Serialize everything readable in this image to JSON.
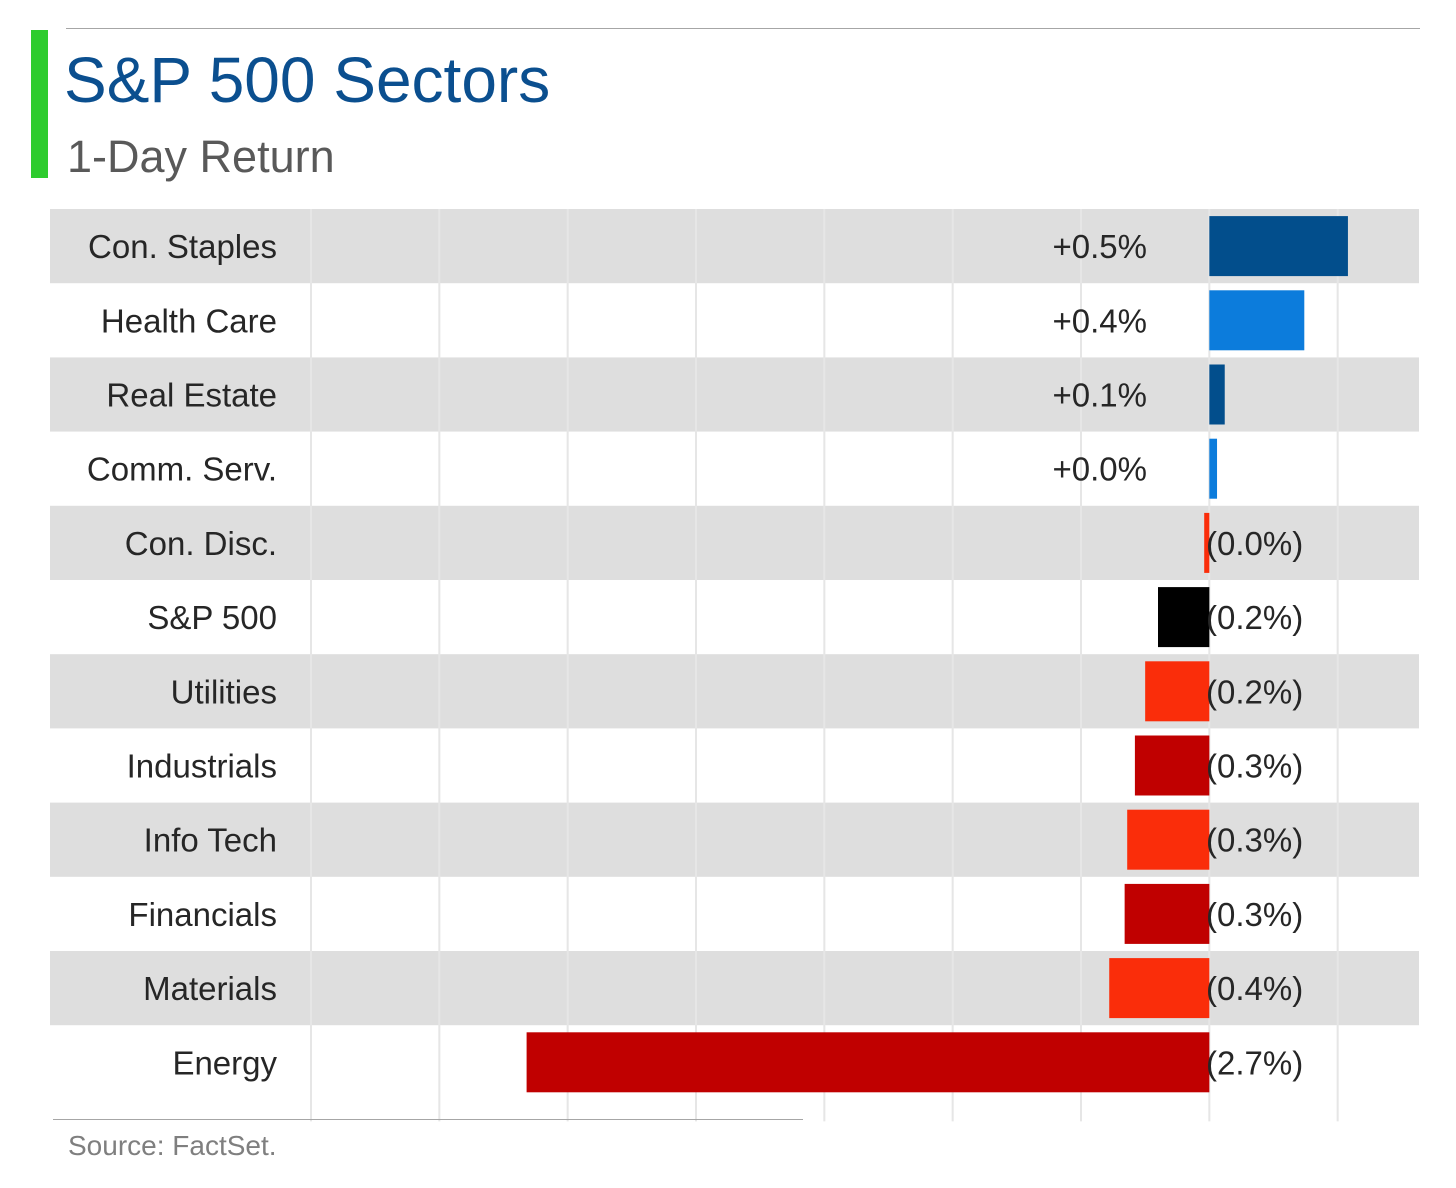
{
  "header": {
    "title": "S&P 500 Sectors",
    "subtitle": "1-Day Return"
  },
  "footer": {
    "source": "Source: FactSet."
  },
  "colors": {
    "accent_bar": "#2ecc2e",
    "title": "#0b4f8f",
    "row_band": "#dedede",
    "gridline": "#e6e6e6",
    "dark_blue": "#024e8c",
    "bright_blue": "#0c7cdc",
    "black": "#000000",
    "bright_red": "#fa2d0a",
    "dark_red": "#c00000"
  },
  "chart_data": {
    "type": "bar",
    "orientation": "horizontal",
    "xlim": [
      -3.5,
      1.0
    ],
    "grid": true,
    "categories": [
      "Con. Staples",
      "Health Care",
      "Real Estate",
      "Comm. Serv.",
      "Con. Disc.",
      "S&P 500",
      "Utilities",
      "Industrials",
      "Info Tech",
      "Financials",
      "Materials",
      "Energy"
    ],
    "values": [
      0.54,
      0.37,
      0.06,
      0.03,
      -0.02,
      -0.2,
      -0.25,
      -0.29,
      -0.32,
      -0.33,
      -0.39,
      -2.66
    ],
    "value_labels": [
      "+0.5%",
      "+0.4%",
      "+0.1%",
      "+0.0%",
      "(0.0%)",
      "(0.2%)",
      "(0.2%)",
      "(0.3%)",
      "(0.3%)",
      "(0.3%)",
      "(0.4%)",
      "(2.7%)"
    ],
    "bar_colors": [
      "#024e8c",
      "#0c7cdc",
      "#024e8c",
      "#0c7cdc",
      "#fa2d0a",
      "#000000",
      "#fa2d0a",
      "#c00000",
      "#fa2d0a",
      "#c00000",
      "#fa2d0a",
      "#c00000"
    ]
  }
}
